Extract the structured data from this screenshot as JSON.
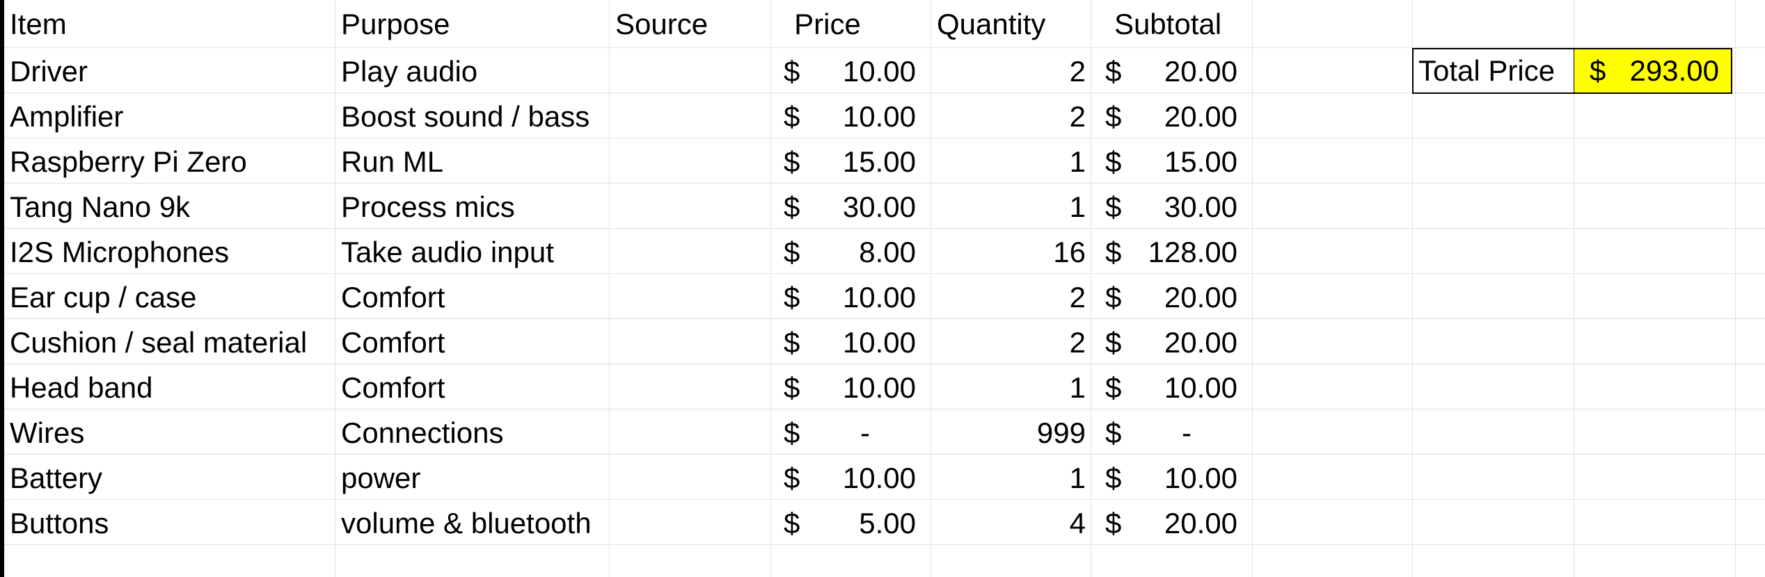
{
  "headers": {
    "item": "Item",
    "purpose": "Purpose",
    "source": "Source",
    "price": "Price",
    "quantity": "Quantity",
    "subtotal": "Subtotal"
  },
  "rows": [
    {
      "item": "Driver",
      "purpose": "Play audio",
      "source": "",
      "price_symbol": "$",
      "price": "10.00",
      "quantity": "2",
      "subtotal_symbol": "$",
      "subtotal": "20.00"
    },
    {
      "item": "Amplifier",
      "purpose": "Boost sound / bass",
      "source": "",
      "price_symbol": "$",
      "price": "10.00",
      "quantity": "2",
      "subtotal_symbol": "$",
      "subtotal": "20.00"
    },
    {
      "item": "Raspberry Pi Zero",
      "purpose": "Run ML",
      "source": "",
      "price_symbol": "$",
      "price": "15.00",
      "quantity": "1",
      "subtotal_symbol": "$",
      "subtotal": "15.00"
    },
    {
      "item": "Tang Nano 9k",
      "purpose": "Process mics",
      "source": "",
      "price_symbol": "$",
      "price": "30.00",
      "quantity": "1",
      "subtotal_symbol": "$",
      "subtotal": "30.00"
    },
    {
      "item": "I2S Microphones",
      "purpose": "Take audio input",
      "source": "",
      "price_symbol": "$",
      "price": "8.00",
      "quantity": "16",
      "subtotal_symbol": "$",
      "subtotal": "128.00"
    },
    {
      "item": "Ear cup / case",
      "purpose": "Comfort",
      "source": "",
      "price_symbol": "$",
      "price": "10.00",
      "quantity": "2",
      "subtotal_symbol": "$",
      "subtotal": "20.00"
    },
    {
      "item": "Cushion / seal material",
      "purpose": "Comfort",
      "source": "",
      "price_symbol": "$",
      "price": "10.00",
      "quantity": "2",
      "subtotal_symbol": "$",
      "subtotal": "20.00"
    },
    {
      "item": "Head band",
      "purpose": "Comfort",
      "source": "",
      "price_symbol": "$",
      "price": "10.00",
      "quantity": "1",
      "subtotal_symbol": "$",
      "subtotal": "10.00"
    },
    {
      "item": "Wires",
      "purpose": "Connections",
      "source": "",
      "price_symbol": "$",
      "price": "-",
      "quantity": "999",
      "subtotal_symbol": "$",
      "subtotal": "-"
    },
    {
      "item": "Battery",
      "purpose": "power",
      "source": "",
      "price_symbol": "$",
      "price": "10.00",
      "quantity": "1",
      "subtotal_symbol": "$",
      "subtotal": "10.00"
    },
    {
      "item": "Buttons",
      "purpose": "volume & bluetooth",
      "source": "",
      "price_symbol": "$",
      "price": "5.00",
      "quantity": "4",
      "subtotal_symbol": "$",
      "subtotal": "20.00"
    }
  ],
  "total": {
    "label": "Total Price",
    "currency_symbol": "$",
    "value": "293.00",
    "highlight_color": "#ffff00"
  },
  "colors": {
    "gridline": "#e1e1e1",
    "text": "#000000",
    "background": "#ffffff"
  }
}
